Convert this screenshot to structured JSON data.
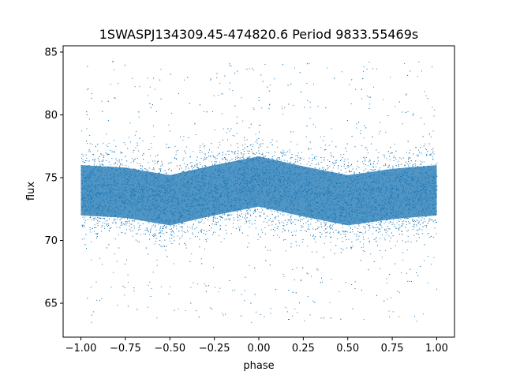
{
  "chart_data": {
    "type": "scatter",
    "title": "1SWASPJ134309.45-474820.6 Period 9833.55469s",
    "xlabel": "phase",
    "ylabel": "flux",
    "xlim": [
      -1.1,
      1.1
    ],
    "ylim": [
      62.3,
      85.5
    ],
    "xticks": [
      -1.0,
      -0.75,
      -0.5,
      -0.25,
      0.0,
      0.25,
      0.5,
      0.75,
      1.0
    ],
    "xtick_labels": [
      "−1.00",
      "−0.75",
      "−0.50",
      "−0.25",
      "0.00",
      "0.25",
      "0.50",
      "0.75",
      "1.00"
    ],
    "yticks": [
      65,
      70,
      75,
      80,
      85
    ],
    "ytick_labels": [
      "65",
      "70",
      "75",
      "80",
      "85"
    ],
    "grid": false,
    "legend": "none",
    "marker_color": "#1f77b4",
    "series": [
      {
        "profile": {
          "phase": [
            -1.0,
            -0.75,
            -0.5,
            -0.25,
            0.0,
            0.25,
            0.5,
            0.75,
            1.0
          ],
          "median_flux": [
            74.0,
            73.8,
            73.2,
            74.0,
            74.7,
            73.9,
            73.2,
            73.7,
            74.0
          ],
          "core_spread": 2.0,
          "outlier_range": [
            63.5,
            84.3
          ]
        }
      }
    ]
  }
}
